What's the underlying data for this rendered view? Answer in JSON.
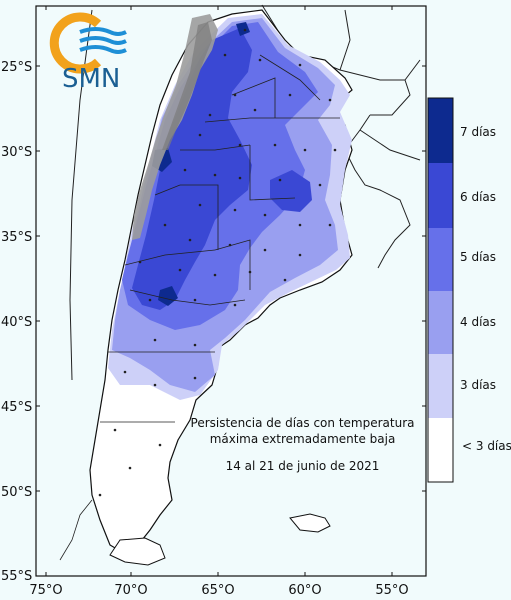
{
  "logo": {
    "text": "SMN"
  },
  "title": {
    "line1": "Persistencia de días con temperatura",
    "line2": "máxima extremadamente baja",
    "date": "14 al 21 de junio de 2021"
  },
  "axes": {
    "lat_labels": [
      "25°S",
      "30°S",
      "35°S",
      "40°S",
      "45°S",
      "50°S",
      "55°S"
    ],
    "lon_labels": [
      "75°O",
      "70°O",
      "65°O",
      "60°O",
      "55°O"
    ]
  },
  "legend": {
    "items": [
      {
        "label": "7 días",
        "color": "#0d2a8f"
      },
      {
        "label": "6 días",
        "color": "#3a48d4"
      },
      {
        "label": "5 días",
        "color": "#6670ea"
      },
      {
        "label": "4 días",
        "color": "#999ff0"
      },
      {
        "label": "3 días",
        "color": "#cdd0f8"
      },
      {
        "label": "< 3 días",
        "color": "#ffffff"
      }
    ]
  },
  "colors": {
    "background": "#f1fbfc",
    "land": "#ffffff",
    "andes": "#9c9c9c",
    "logo_orange": "#f2a21c",
    "logo_blue": "#1e8fd6"
  }
}
